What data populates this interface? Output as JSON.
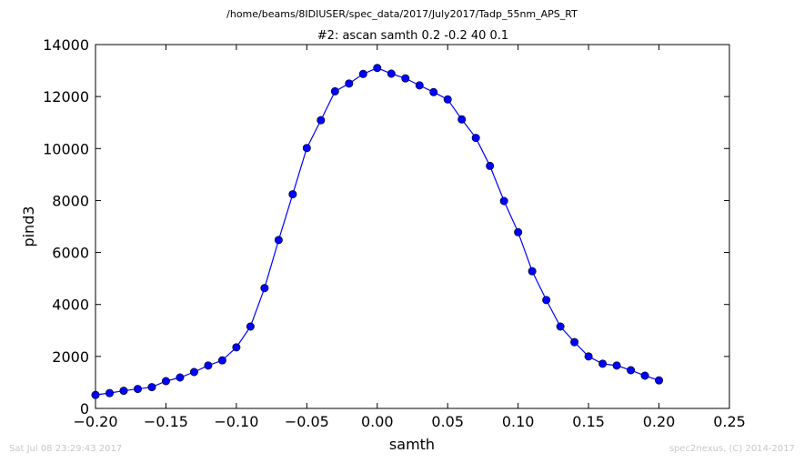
{
  "chart_data": {
    "type": "line",
    "suptitle": "/home/beams/8IDIUSER/spec_data/2017/July2017/Tadp_55nm_APS_RT",
    "title": "#2: ascan  samth 0.2 -0.2  40 0.1",
    "xlabel": "samth",
    "ylabel": "pind3",
    "xlim": [
      -0.2,
      0.25
    ],
    "ylim": [
      0,
      14000
    ],
    "xticks": [
      "−0.20",
      "−0.15",
      "−0.10",
      "−0.05",
      "0.00",
      "0.05",
      "0.10",
      "0.15",
      "0.20",
      "0.25"
    ],
    "yticks": [
      "0",
      "2000",
      "4000",
      "6000",
      "8000",
      "10000",
      "12000",
      "14000"
    ],
    "grid": false,
    "series": [
      {
        "color": "#0000ff",
        "marker": "circle",
        "x": [
          -0.2,
          -0.19,
          -0.18,
          -0.17,
          -0.16,
          -0.15,
          -0.14,
          -0.13,
          -0.12,
          -0.11,
          -0.1,
          -0.09,
          -0.08,
          -0.07,
          -0.06,
          -0.05,
          -0.04,
          -0.03,
          -0.02,
          -0.01,
          0.0,
          0.01,
          0.02,
          0.03,
          0.04,
          0.05,
          0.06,
          0.07,
          0.08,
          0.09,
          0.1,
          0.11,
          0.12,
          0.13,
          0.14,
          0.15,
          0.16,
          0.17,
          0.18,
          0.19,
          0.2
        ],
        "y": [
          520,
          590,
          680,
          750,
          820,
          1050,
          1190,
          1400,
          1650,
          1850,
          2350,
          3150,
          4630,
          6480,
          8240,
          10020,
          11090,
          12200,
          12500,
          12870,
          13100,
          12880,
          12700,
          12430,
          12170,
          11890,
          11120,
          10410,
          9330,
          7980,
          6780,
          5280,
          4170,
          3150,
          2550,
          2000,
          1720,
          1650,
          1470,
          1260,
          1080
        ]
      }
    ]
  },
  "footer": {
    "left": "Sat Jul 08 23:29:43 2017",
    "right": "spec2nexus, (C) 2014-2017"
  }
}
